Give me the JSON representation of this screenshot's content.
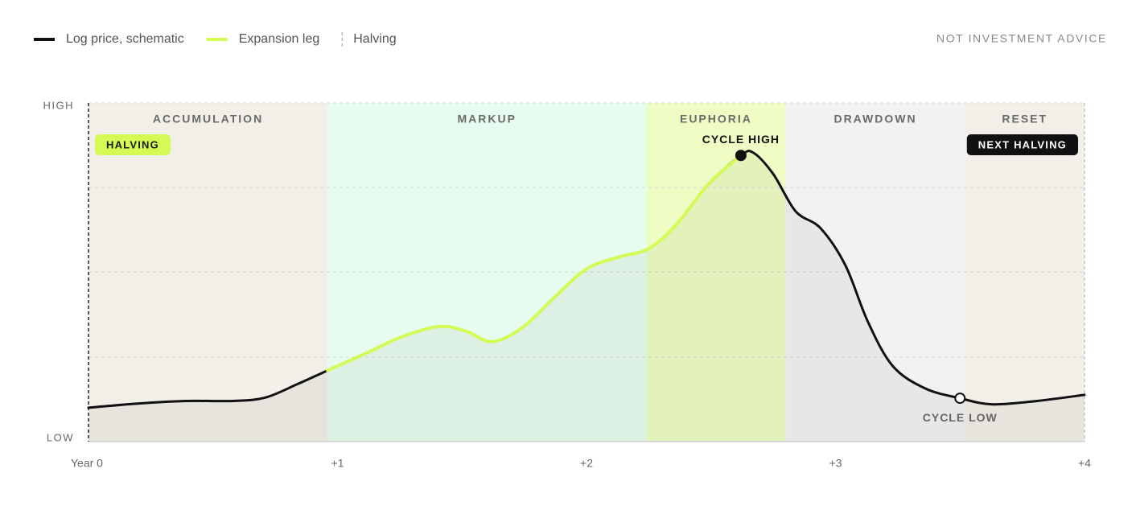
{
  "chart_data": {
    "type": "line",
    "disclaimer": "NOT INVESTMENT ADVICE",
    "xlim": [
      0,
      4
    ],
    "xticks": [
      {
        "value": 0,
        "label": "Year 0"
      },
      {
        "value": 1,
        "label": "+1"
      },
      {
        "value": 2,
        "label": "+2"
      },
      {
        "value": 3,
        "label": "+3"
      },
      {
        "value": 4,
        "label": "+4"
      }
    ],
    "ylim": [
      0,
      100
    ],
    "yticks": [
      {
        "value": 0,
        "label": "LOW"
      },
      {
        "value": 100,
        "label": "HIGH"
      }
    ],
    "y_gridlines": [
      25,
      50,
      75
    ],
    "phases": [
      {
        "name": "ACCUMULATION",
        "start": 0,
        "end": 0.96,
        "color": "#f2efe9"
      },
      {
        "name": "MARKUP",
        "start": 0.96,
        "end": 2.24,
        "color": "#e6fcef"
      },
      {
        "name": "EUPHORIA",
        "start": 2.24,
        "end": 2.8,
        "color": "#eefdc3"
      },
      {
        "name": "DRAWDOWN",
        "start": 2.8,
        "end": 3.52,
        "color": "#f2f2f2"
      },
      {
        "name": "RESET",
        "start": 3.52,
        "end": 4,
        "color": "#f2efe9"
      }
    ],
    "x": [
      0,
      0.19,
      0.39,
      0.58,
      0.71,
      0.84,
      0.96,
      1.13,
      1.26,
      1.41,
      1.52,
      1.62,
      1.74,
      1.87,
      2.0,
      2.13,
      2.25,
      2.36,
      2.49,
      2.62,
      2.67,
      2.75,
      2.84,
      2.94,
      3.04,
      3.13,
      3.23,
      3.36,
      3.5,
      3.63,
      3.81,
      4
    ],
    "series": [
      {
        "name": "Log price, schematic",
        "color": "#111111",
        "values": [
          10,
          11.2,
          12,
          12,
          13,
          17,
          21,
          26.6,
          31,
          34,
          32.5,
          29.5,
          33.5,
          42.5,
          51,
          54.5,
          57,
          64,
          76,
          84.5,
          85.3,
          79,
          68,
          63,
          52,
          35.4,
          22.3,
          15.7,
          12.8,
          11,
          12,
          13.8
        ]
      },
      {
        "name": "Expansion leg",
        "color": "#d4fa55",
        "values": [
          null,
          null,
          null,
          null,
          null,
          null,
          21,
          26.6,
          31,
          34,
          32.5,
          29.5,
          33.5,
          42.5,
          51,
          54.5,
          57,
          64,
          76,
          84.5,
          null,
          null,
          null,
          null,
          null,
          null,
          null,
          null,
          null,
          null,
          null,
          null
        ]
      }
    ],
    "halving_legend": "Halving",
    "halvings": [
      {
        "x": 0,
        "label": "HALVING",
        "color": "#d4fa55"
      },
      {
        "x": 4,
        "label": "NEXT HALVING",
        "color": "#111111"
      }
    ],
    "annotations": [
      {
        "x": 2.62,
        "y": 84.5,
        "label": "CYCLE HIGH"
      },
      {
        "x": 3.5,
        "y": 12.8,
        "label": "CYCLE LOW"
      }
    ]
  }
}
